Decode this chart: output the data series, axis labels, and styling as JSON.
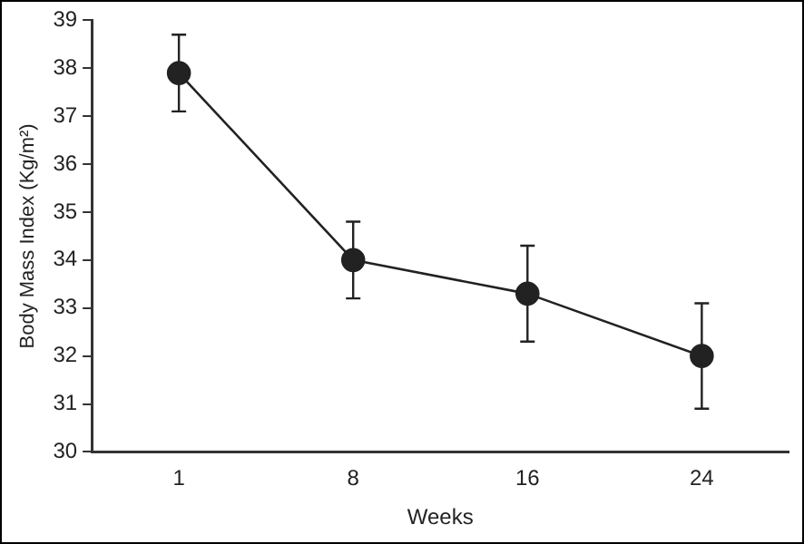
{
  "chart_data": {
    "type": "line",
    "xlabel": "Weeks",
    "ylabel": "Body Mass Index (Kg/m²)",
    "categories": [
      "1",
      "8",
      "16",
      "24"
    ],
    "series": [
      {
        "color": "#222222",
        "values": [
          37.9,
          34.0,
          33.3,
          32.0
        ],
        "errors": [
          0.8,
          0.8,
          1.0,
          1.1
        ]
      }
    ],
    "ylim": [
      30,
      39
    ],
    "yticks": [
      30,
      31,
      32,
      33,
      34,
      35,
      36,
      37,
      38,
      39
    ],
    "grid": false,
    "legend": false,
    "marker": "circle",
    "line_style": "solid"
  }
}
